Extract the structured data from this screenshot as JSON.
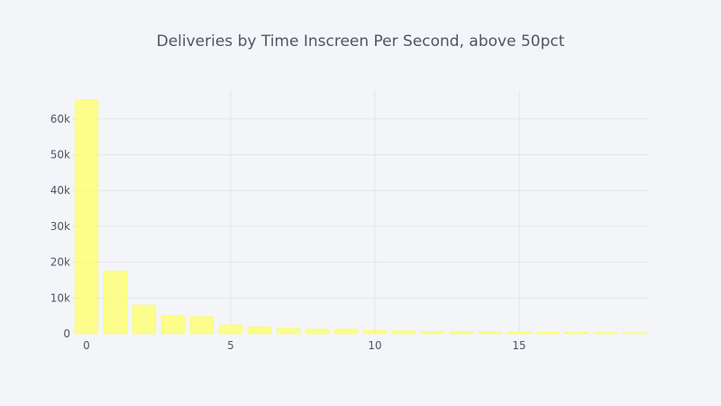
{
  "chart_data": {
    "type": "bar",
    "title": "Deliveries by Time Inscreen Per Second, above 50pct",
    "xlabel": "",
    "ylabel": "",
    "x": [
      0,
      1,
      2,
      3,
      4,
      5,
      6,
      7,
      8,
      9,
      10,
      11,
      12,
      13,
      14,
      15,
      16,
      17,
      18,
      19
    ],
    "values": [
      65300,
      17500,
      8000,
      5000,
      4800,
      2500,
      1900,
      1500,
      1300,
      1300,
      900,
      800,
      700,
      650,
      600,
      500,
      450,
      400,
      350,
      300
    ],
    "xlim": [
      -0.5,
      19.5
    ],
    "ylim": [
      0,
      68000
    ],
    "x_ticks": [
      0,
      5,
      10,
      15
    ],
    "x_tick_labels": [
      "0",
      "5",
      "10",
      "15"
    ],
    "y_ticks": [
      0,
      10000,
      20000,
      30000,
      40000,
      50000,
      60000
    ],
    "y_tick_labels": [
      "0",
      "10k",
      "20k",
      "30k",
      "40k",
      "50k",
      "60k"
    ],
    "grid": true,
    "colors": {
      "background": "#f4f5f9",
      "bar_fill": "#ffff66",
      "grid": "#e1e5ed",
      "text": "#4d5663"
    }
  }
}
